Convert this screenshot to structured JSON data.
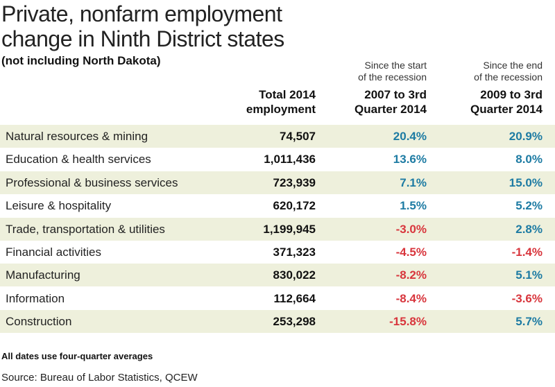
{
  "title": [
    "Private, nonfarm employment",
    "change in Ninth District states"
  ],
  "subtitle": "(not including North Dakota)",
  "table": {
    "super_headers": [
      null,
      null,
      [
        "Since the start",
        "of the recession"
      ],
      [
        "Since the end",
        "of the recession"
      ]
    ],
    "headers": [
      null,
      [
        "Total 2014",
        "employment"
      ],
      [
        "2007 to 3rd",
        "Quarter 2014"
      ],
      [
        "2009 to 3rd",
        "Quarter 2014"
      ]
    ],
    "rows": [
      [
        "Natural resources & mining",
        "74,507",
        "20.4%",
        "20.9%"
      ],
      [
        "Education & health services",
        "1,011,436",
        "13.6%",
        "8.0%"
      ],
      [
        "Professional & business services",
        "723,939",
        "7.1%",
        "15.0%"
      ],
      [
        "Leisure & hospitality",
        "620,172",
        "1.5%",
        "5.2%"
      ],
      [
        "Trade, transportation & utilities",
        "1,199,945",
        "-3.0%",
        "2.8%"
      ],
      [
        "Financial activities",
        "371,323",
        "-4.5%",
        "-1.4%"
      ],
      [
        "Manufacturing",
        "830,022",
        "-8.2%",
        "5.1%"
      ],
      [
        "Information",
        "112,664",
        "-8.4%",
        "-3.6%"
      ],
      [
        "Construction",
        "253,298",
        "-15.8%",
        "5.7%"
      ]
    ]
  },
  "footnote": "All dates use four-quarter averages",
  "source": "Source: Bureau of Labor Statistics, QCEW"
}
